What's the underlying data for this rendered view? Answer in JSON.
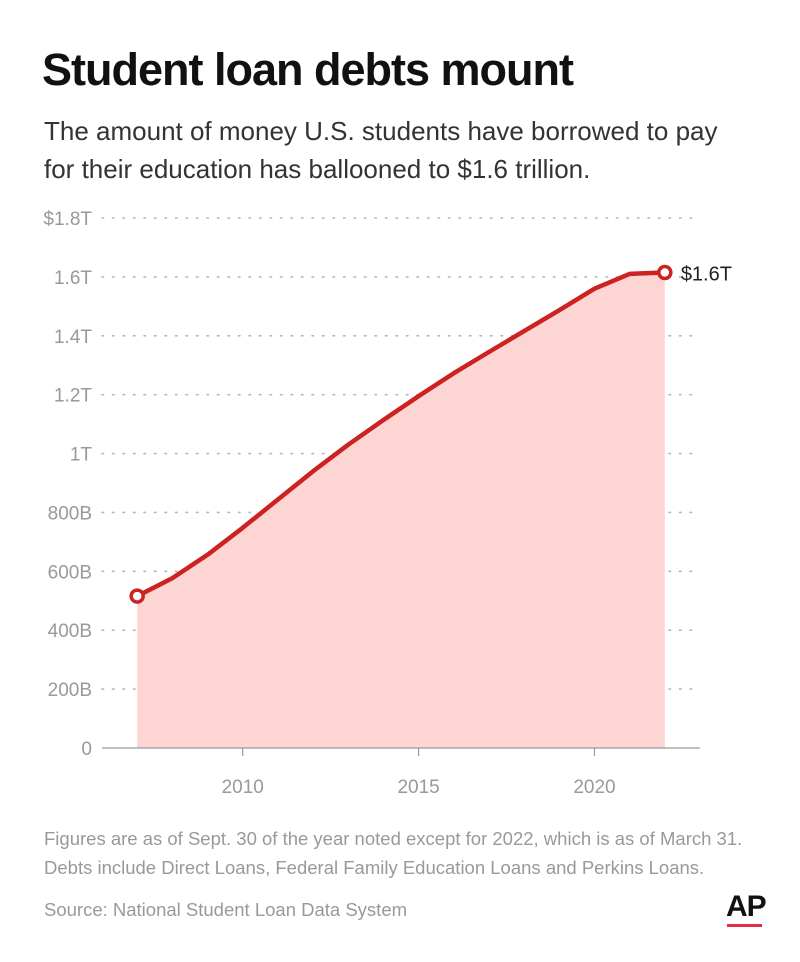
{
  "header": {
    "title": "Student loan debts mount",
    "subtitle": "The amount of money U.S. students have borrowed to pay for their education has ballooned to $1.6 trillion."
  },
  "chart_data": {
    "type": "area",
    "x": [
      2007,
      2008,
      2009,
      2010,
      2011,
      2012,
      2013,
      2014,
      2015,
      2016,
      2017,
      2018,
      2019,
      2020,
      2021,
      2022
    ],
    "series": [
      {
        "values": [
          516,
          577,
          656,
          748,
          844,
          940,
          1030,
          1114,
          1195,
          1273,
          1345,
          1416,
          1487,
          1560,
          1610,
          1615
        ],
        "line_color": "#cc2222",
        "fill_color": "#fdd5d3"
      }
    ],
    "ylim": [
      0,
      1800
    ],
    "y_ticks": [
      0,
      200,
      400,
      600,
      800,
      1000,
      1200,
      1400,
      1600,
      1800
    ],
    "y_tick_labels": [
      "0",
      "200B",
      "400B",
      "600B",
      "800B",
      "1T",
      "1.2T",
      "1.4T",
      "1.6T",
      "$1.8T"
    ],
    "x_ticks": [
      2010,
      2015,
      2020
    ],
    "x_tick_labels": [
      "2010",
      "2015",
      "2020"
    ],
    "xlim": [
      2006,
      2023
    ],
    "end_label": "$1.6T",
    "grid": "dotted-horizontal",
    "legend": "none"
  },
  "footer": {
    "notes": [
      "Figures are as of Sept. 30 of the year noted except for 2022, which is as of March 31.",
      "Debts include Direct Loans, Federal Family Education Loans and Perkins Loans."
    ],
    "source": "Source: National Student Loan Data System",
    "logo": "AP",
    "logo_accent_color": "#e03049"
  }
}
